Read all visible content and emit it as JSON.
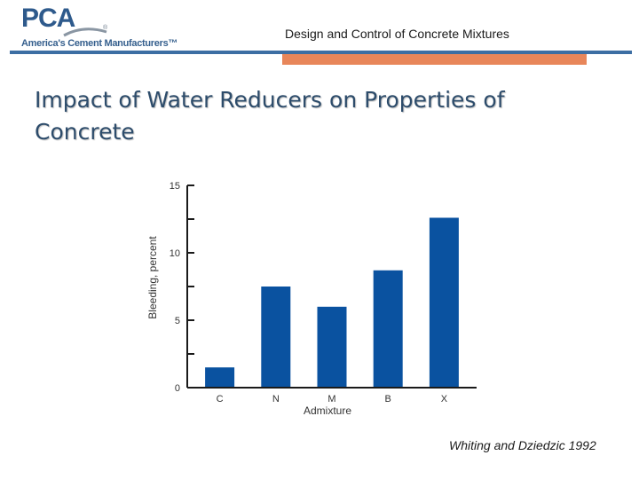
{
  "header": {
    "logo_text": "PCA",
    "logo_tagline": "America's Cement Manufacturers™",
    "title": "Design and Control of Concrete Mixtures"
  },
  "slide": {
    "title": "Impact of Water Reducers on Properties of Concrete"
  },
  "chart_data": {
    "type": "bar",
    "categories": [
      "C",
      "N",
      "M",
      "B",
      "X"
    ],
    "values": [
      1.5,
      7.5,
      6.0,
      8.7,
      12.6
    ],
    "xlabel": "Admixture",
    "ylabel": "Bleeding, percent",
    "ylim": [
      0,
      15
    ],
    "yticks": [
      0,
      5,
      10,
      15
    ],
    "minor_step": 2.5,
    "bar_color": "#0a52a0",
    "grid": false
  },
  "citation": "Whiting and Dziedzic 1992",
  "colors": {
    "brand_blue": "#3c6ea3",
    "accent_orange": "#e8865a",
    "title_color": "#2d4c6b"
  }
}
